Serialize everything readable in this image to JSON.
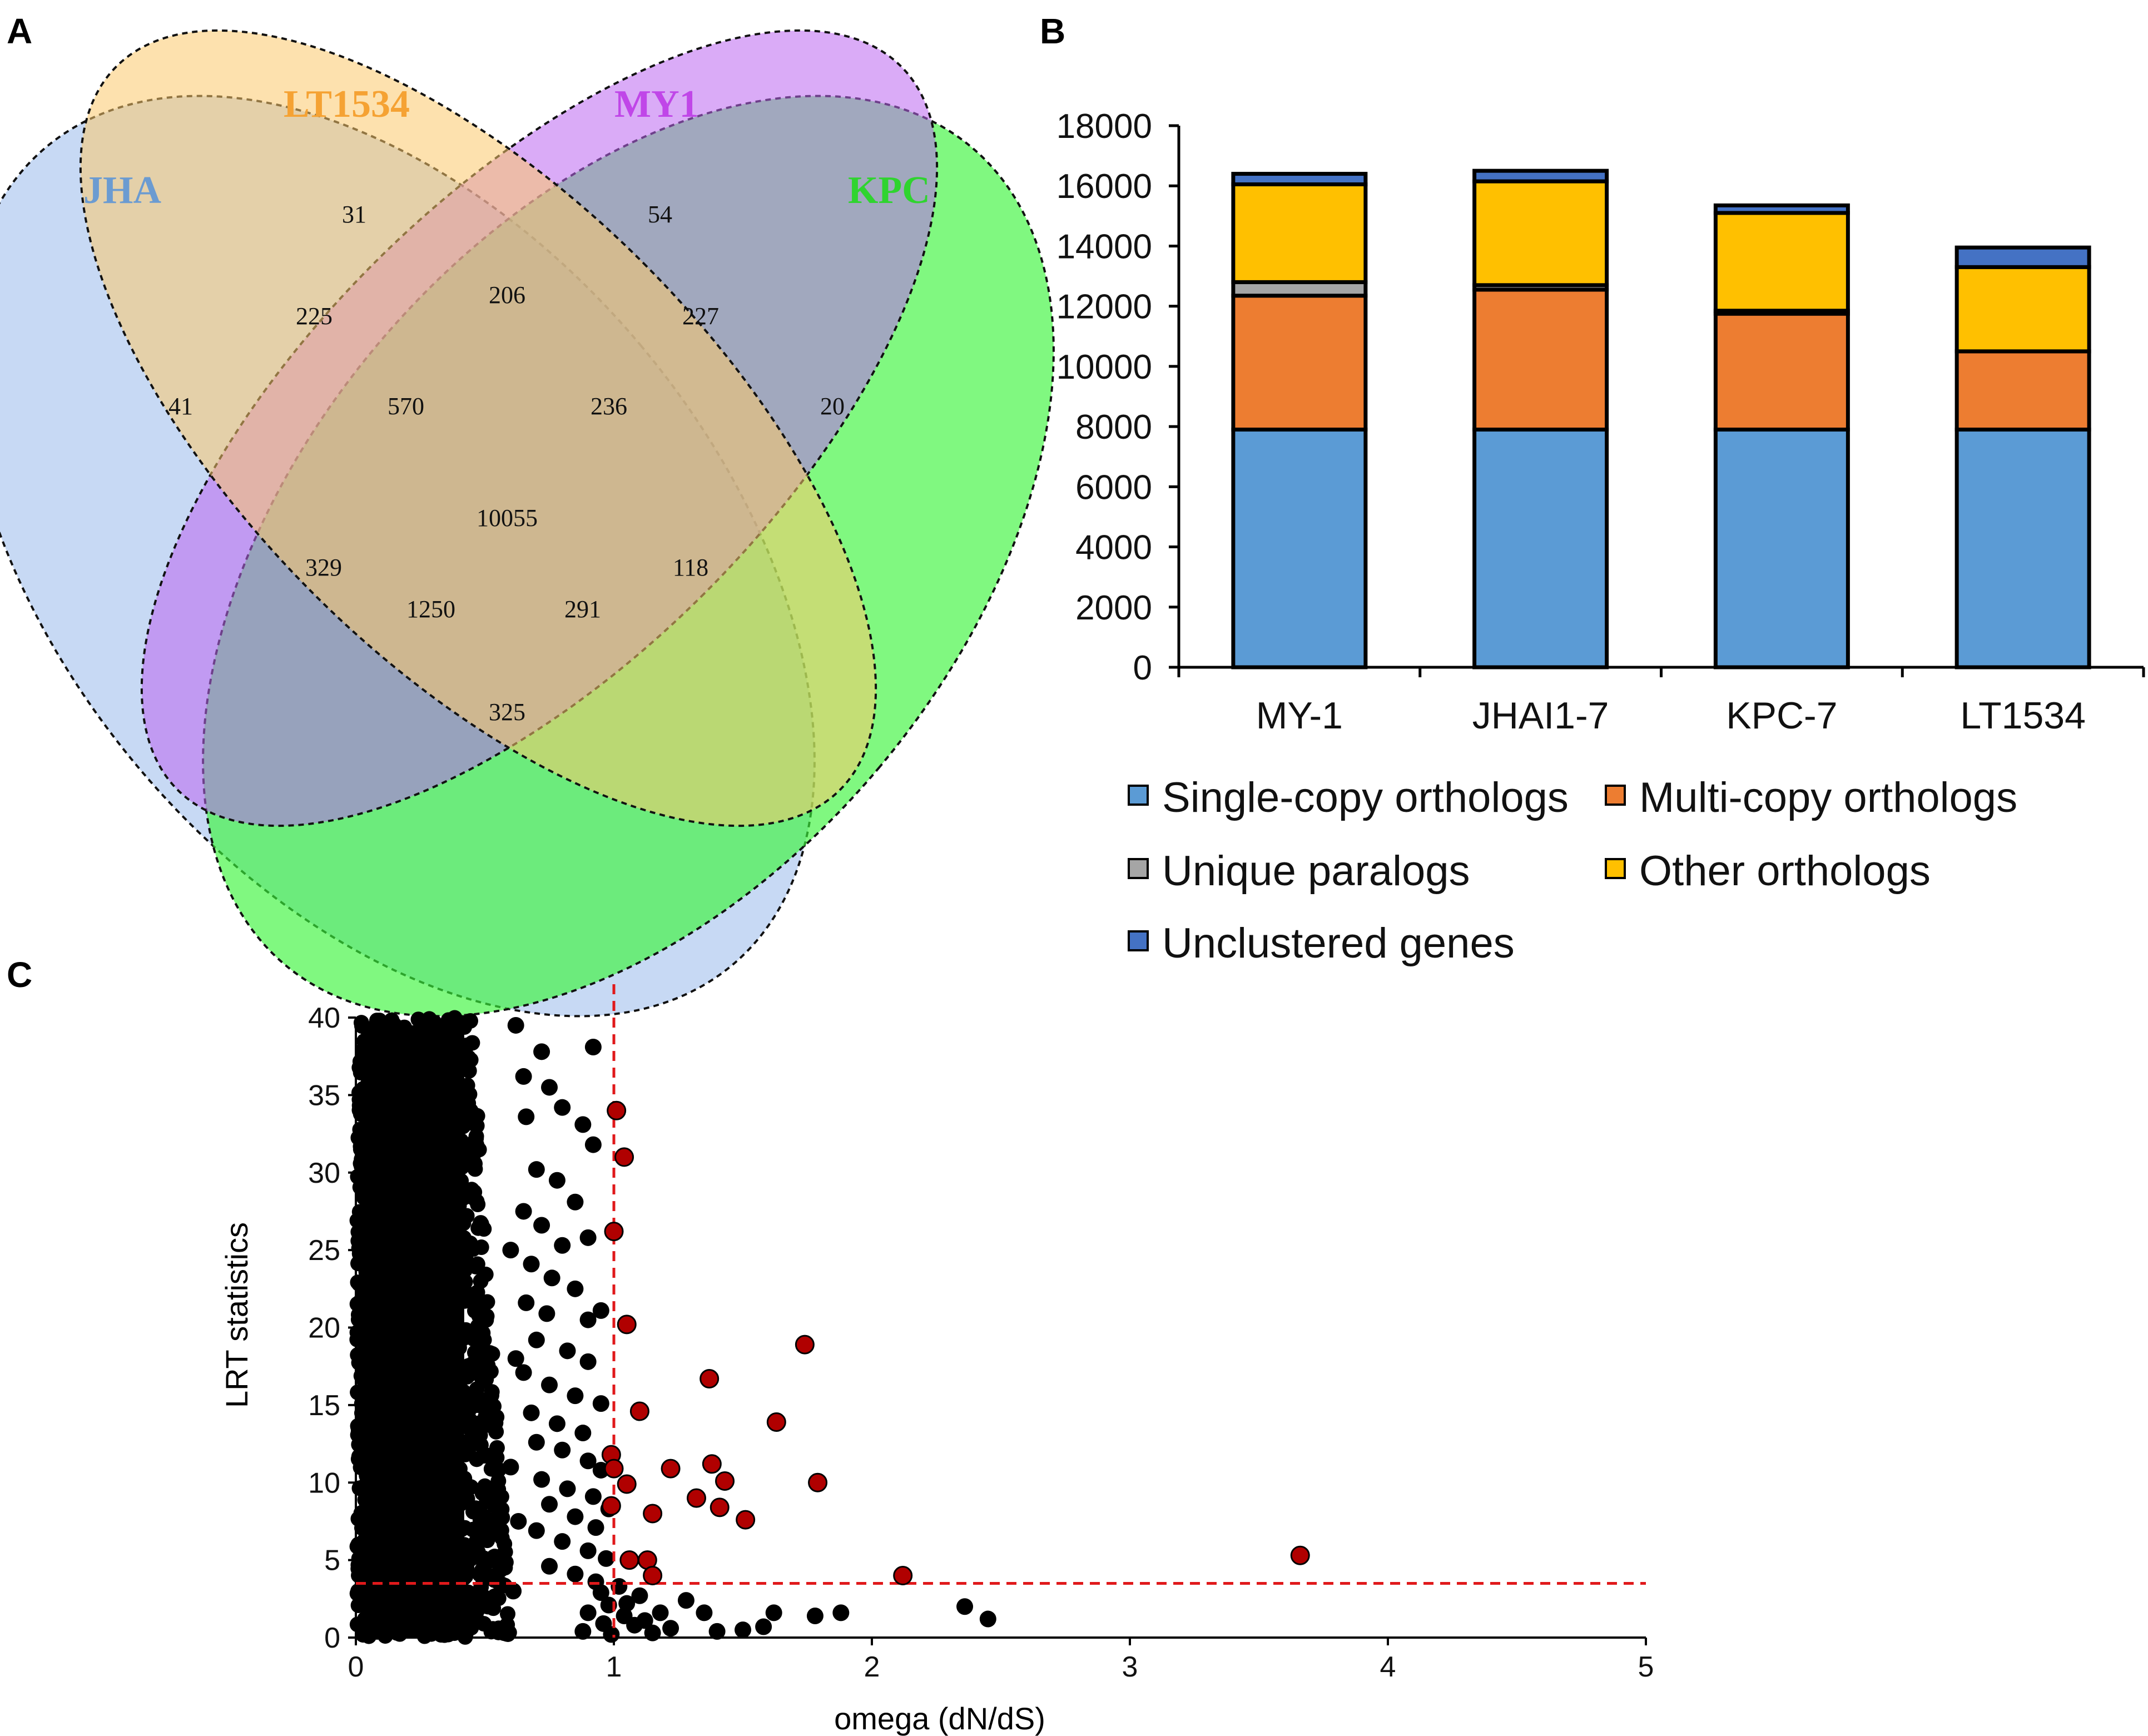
{
  "panel_labels": {
    "a": "A",
    "b": "B",
    "c": "C"
  },
  "chart_data": [
    {
      "type": "venn",
      "panel": "A",
      "sets": [
        {
          "name": "JHA",
          "color": "#6b9bd1",
          "fill": "#a9c4ee"
        },
        {
          "name": "LT1534",
          "color": "#f5a233",
          "fill": "#fbc96c"
        },
        {
          "name": "MY1",
          "color": "#c046e8",
          "fill": "#bb66f0"
        },
        {
          "name": "KPC",
          "color": "#2fd42f",
          "fill": "#3cf53c"
        }
      ],
      "regions": {
        "jha_only": "41",
        "lt_only": "31",
        "my_only": "54",
        "kpc_only": "20",
        "jha_lt": "225",
        "lt_my": "206",
        "my_kpc": "227",
        "jha_lt_my": "570",
        "lt_my_kpc": "236",
        "all": "10055",
        "jha_my": "329",
        "lt_kpc": "118",
        "jha_my_kpc": "1250",
        "jha_lt_kpc": "291",
        "jha_kpc": "325"
      }
    },
    {
      "type": "bar",
      "stacked": true,
      "panel": "B",
      "categories": [
        "MY-1",
        "JHAI1-7",
        "KPC-7",
        "LT1534"
      ],
      "series": [
        {
          "name": "Single-copy orthologs",
          "color": "#5b9bd5",
          "values": [
            7900,
            7900,
            7900,
            7900
          ]
        },
        {
          "name": "Multi-copy orthologs",
          "color": "#ed7d31",
          "values": [
            4450,
            4650,
            3850,
            2600
          ]
        },
        {
          "name": "Unique paralogs",
          "color": "#a5a5a5",
          "values": [
            450,
            150,
            100,
            0
          ]
        },
        {
          "name": "Other orthologs",
          "color": "#ffc000",
          "values": [
            3250,
            3450,
            3250,
            2800
          ]
        },
        {
          "name": "Unclustered genes",
          "color": "#4472c4",
          "values": [
            350,
            350,
            250,
            650
          ]
        }
      ],
      "yticks": [
        "0",
        "2000",
        "4000",
        "6000",
        "8000",
        "10000",
        "12000",
        "14000",
        "16000",
        "18000"
      ],
      "ylim": [
        0,
        18000
      ]
    },
    {
      "type": "scatter",
      "panel": "C",
      "xlabel": "omega (dN/dS)",
      "ylabel": "LRT statistics",
      "xlim": [
        0,
        5
      ],
      "ylim": [
        0,
        40
      ],
      "xticks": [
        "0",
        "1",
        "2",
        "3",
        "4",
        "5"
      ],
      "yticks": [
        "0",
        "5",
        "10",
        "15",
        "20",
        "25",
        "30",
        "35",
        "40"
      ],
      "thresholds": {
        "omega": 1,
        "lrt": 3.5
      },
      "dense_region": {
        "omega_max": 0.6,
        "lrt_max": 40,
        "count": 1600
      },
      "black_points": [
        [
          0.62,
          39.5
        ],
        [
          0.72,
          37.8
        ],
        [
          0.92,
          38.1
        ],
        [
          0.65,
          36.2
        ],
        [
          0.75,
          35.5
        ],
        [
          0.8,
          34.2
        ],
        [
          0.88,
          33.1
        ],
        [
          0.92,
          31.8
        ],
        [
          0.66,
          33.6
        ],
        [
          0.7,
          30.2
        ],
        [
          0.78,
          29.5
        ],
        [
          0.85,
          28.1
        ],
        [
          0.65,
          27.5
        ],
        [
          0.72,
          26.6
        ],
        [
          0.8,
          25.3
        ],
        [
          0.9,
          25.8
        ],
        [
          0.68,
          24.1
        ],
        [
          0.76,
          23.2
        ],
        [
          0.85,
          22.5
        ],
        [
          0.66,
          21.6
        ],
        [
          0.74,
          20.9
        ],
        [
          0.9,
          20.5
        ],
        [
          0.95,
          21.1
        ],
        [
          0.7,
          19.2
        ],
        [
          0.82,
          18.5
        ],
        [
          0.9,
          17.8
        ],
        [
          0.65,
          17.1
        ],
        [
          0.75,
          16.3
        ],
        [
          0.85,
          15.6
        ],
        [
          0.95,
          15.1
        ],
        [
          0.68,
          14.5
        ],
        [
          0.78,
          13.8
        ],
        [
          0.88,
          13.2
        ],
        [
          0.7,
          12.6
        ],
        [
          0.8,
          12.1
        ],
        [
          0.9,
          11.4
        ],
        [
          0.95,
          10.8
        ],
        [
          0.72,
          10.2
        ],
        [
          0.82,
          9.6
        ],
        [
          0.92,
          9.1
        ],
        [
          0.98,
          8.3
        ],
        [
          0.75,
          8.6
        ],
        [
          0.85,
          7.8
        ],
        [
          0.93,
          7.1
        ],
        [
          0.7,
          6.9
        ],
        [
          0.8,
          6.2
        ],
        [
          0.9,
          5.6
        ],
        [
          0.97,
          5.1
        ],
        [
          0.75,
          4.6
        ],
        [
          0.85,
          4.1
        ],
        [
          0.93,
          3.6
        ],
        [
          0.95,
          2.9
        ],
        [
          0.98,
          2.1
        ],
        [
          0.9,
          1.6
        ],
        [
          0.96,
          0.9
        ],
        [
          0.88,
          0.4
        ],
        [
          0.99,
          0.2
        ],
        [
          1.05,
          2.2
        ],
        [
          1.08,
          0.8
        ],
        [
          1.12,
          1.1
        ],
        [
          1.15,
          0.3
        ],
        [
          1.18,
          1.6
        ],
        [
          1.22,
          0.6
        ],
        [
          1.28,
          2.4
        ],
        [
          1.35,
          1.6
        ],
        [
          1.4,
          0.4
        ],
        [
          1.5,
          0.5
        ],
        [
          1.58,
          0.7
        ],
        [
          1.62,
          1.6
        ],
        [
          1.78,
          1.4
        ],
        [
          1.88,
          1.6
        ],
        [
          2.36,
          2.0
        ],
        [
          2.45,
          1.2
        ],
        [
          0.6,
          25.0
        ],
        [
          0.62,
          18.0
        ],
        [
          0.6,
          11.0
        ],
        [
          0.63,
          7.5
        ],
        [
          0.61,
          3.0
        ],
        [
          1.02,
          3.3
        ],
        [
          1.1,
          2.7
        ],
        [
          1.04,
          1.4
        ]
      ],
      "red_points": [
        [
          1.01,
          34.0
        ],
        [
          1.04,
          31.0
        ],
        [
          1.0,
          26.2
        ],
        [
          1.05,
          20.2
        ],
        [
          1.74,
          18.9
        ],
        [
          1.37,
          16.7
        ],
        [
          1.1,
          14.6
        ],
        [
          1.63,
          13.9
        ],
        [
          0.99,
          11.8
        ],
        [
          1.0,
          10.9
        ],
        [
          1.05,
          9.9
        ],
        [
          1.22,
          10.9
        ],
        [
          1.38,
          11.2
        ],
        [
          1.43,
          10.1
        ],
        [
          1.79,
          10.0
        ],
        [
          0.99,
          8.5
        ],
        [
          1.15,
          8.0
        ],
        [
          1.32,
          9.0
        ],
        [
          1.41,
          8.4
        ],
        [
          1.51,
          7.6
        ],
        [
          1.06,
          5.0
        ],
        [
          1.13,
          5.0
        ],
        [
          1.15,
          4.0
        ],
        [
          2.12,
          4.0
        ],
        [
          3.66,
          5.3
        ]
      ]
    }
  ],
  "legend_b": {
    "single": "Single-copy orthologs",
    "multi": "Multi-copy orthologs",
    "paralogs": "Unique paralogs",
    "other": "Other orthologs",
    "unclustered": "Unclustered genes"
  }
}
